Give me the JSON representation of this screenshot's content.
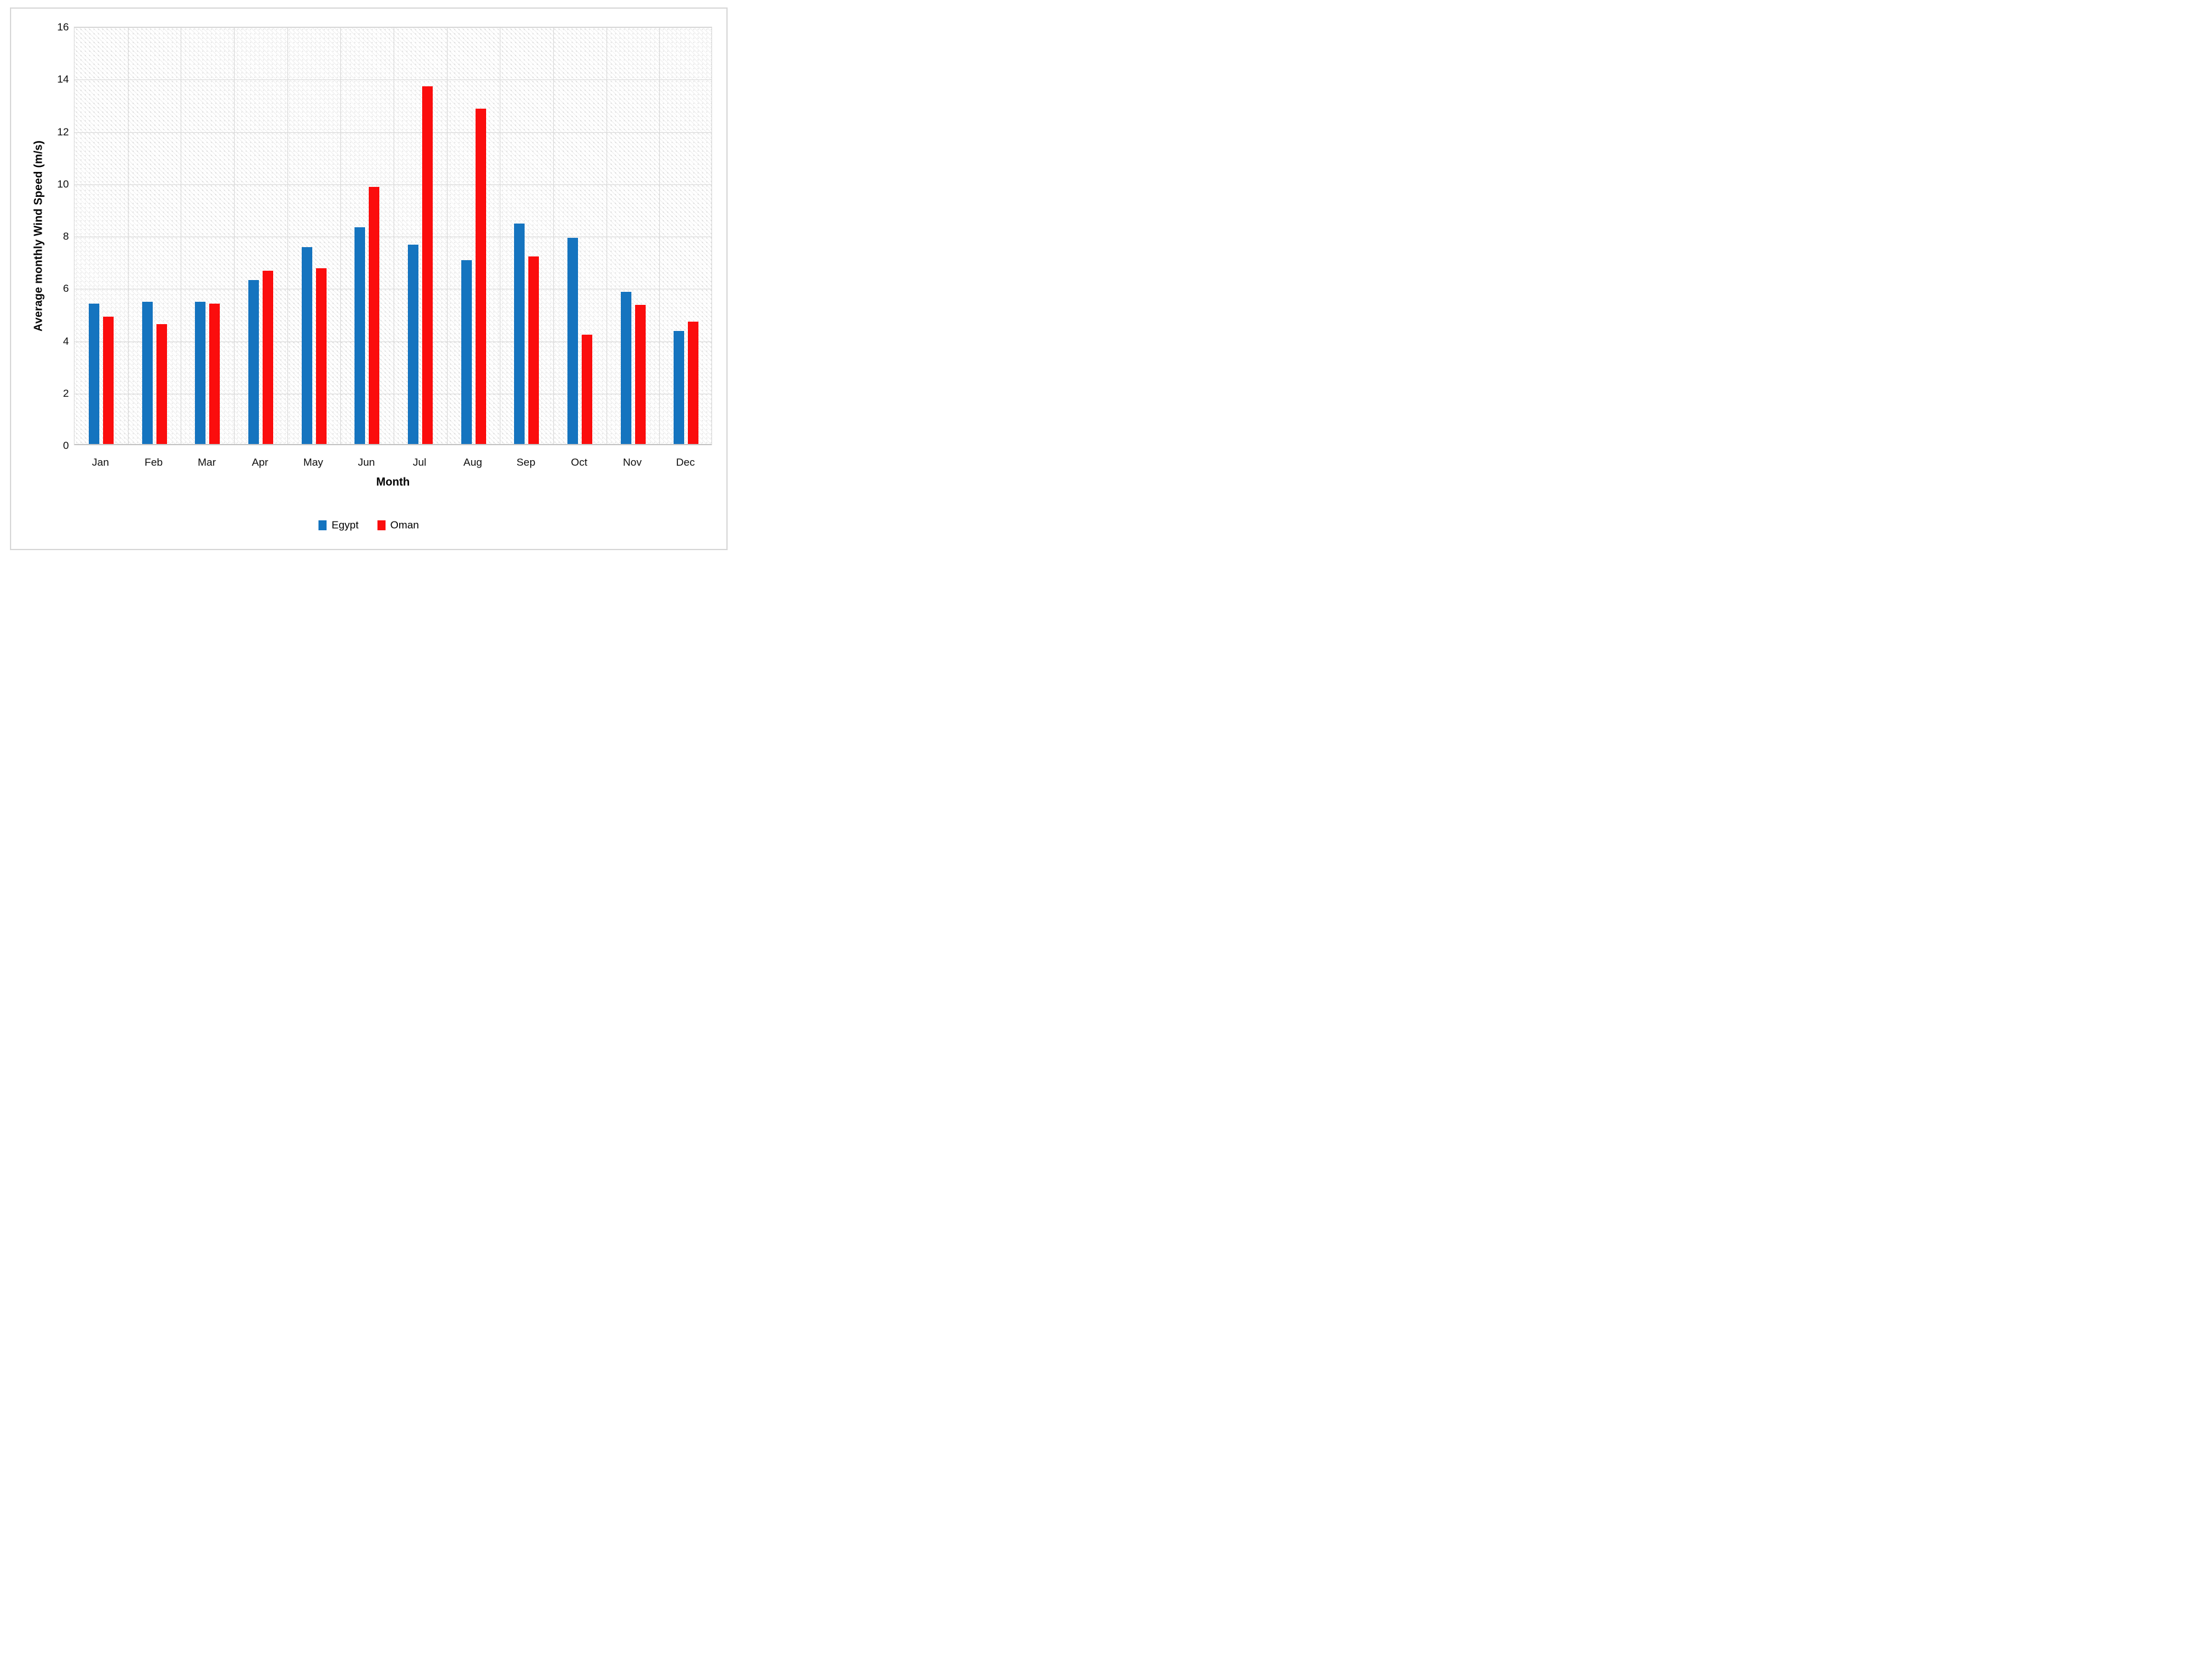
{
  "chart_data": {
    "type": "bar",
    "title": "",
    "xlabel": "Month",
    "ylabel": "Average monthly Wind Speed (m/s)",
    "ylim": [
      0,
      16
    ],
    "ytick_step": 2,
    "yticks": [
      0,
      2,
      4,
      6,
      8,
      10,
      12,
      14,
      16
    ],
    "grid": true,
    "plot_background": "diagonal-hatch",
    "legend_position": "bottom",
    "categories": [
      "Jan",
      "Feb",
      "Mar",
      "Apr",
      "May",
      "Jun",
      "Jul",
      "Aug",
      "Sep",
      "Oct",
      "Nov",
      "Dec"
    ],
    "series": [
      {
        "name": "Egypt",
        "color": "#1574BF",
        "values": [
          5.4,
          5.45,
          5.45,
          6.3,
          7.55,
          8.3,
          7.65,
          7.05,
          8.45,
          7.9,
          5.85,
          4.35
        ]
      },
      {
        "name": "Oman",
        "color": "#FB0D0D",
        "values": [
          4.9,
          4.6,
          5.4,
          6.65,
          6.75,
          9.85,
          13.7,
          12.85,
          7.2,
          4.2,
          5.35,
          4.7
        ]
      }
    ],
    "colors": {
      "gridline": "#D9D9D9",
      "plot_border": "#D9D9D9",
      "figure_border": "#D8D8D8",
      "text": "#0D0D0D"
    }
  }
}
